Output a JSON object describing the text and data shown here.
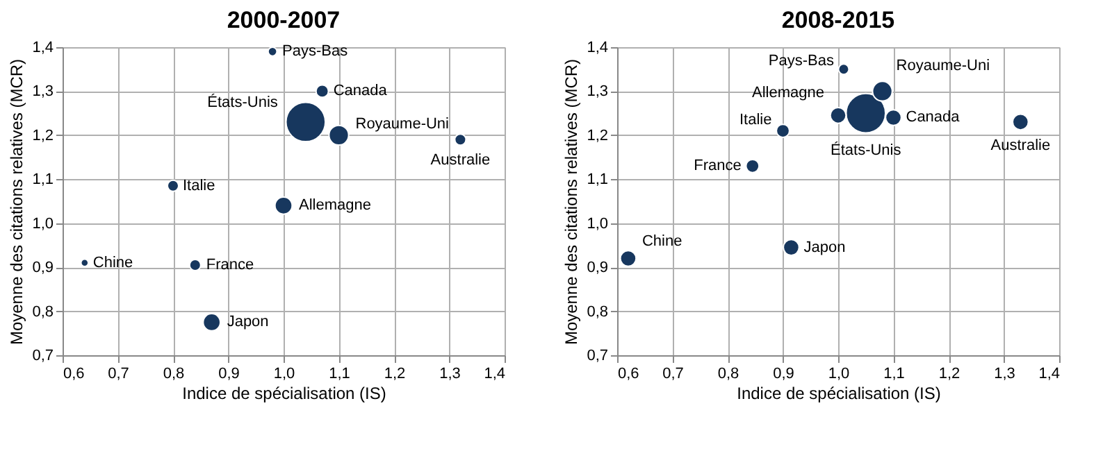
{
  "chart_data": [
    {
      "type": "bubble",
      "title": "2000-2007",
      "xlabel": "Indice de spécialisation (IS)",
      "ylabel": "Moyenne des citations relatives (MCR)",
      "grid": true,
      "xlim": [
        0.6,
        1.4
      ],
      "xticks": [
        {
          "value": 0.6,
          "label": "0,6"
        },
        {
          "value": 0.7,
          "label": "0,7"
        },
        {
          "value": 0.8,
          "label": "0,8"
        },
        {
          "value": 0.9,
          "label": "0,9"
        },
        {
          "value": 1.0,
          "label": "1,0"
        },
        {
          "value": 1.1,
          "label": "1,1"
        },
        {
          "value": 1.2,
          "label": "1,2"
        },
        {
          "value": 1.3,
          "label": "1,3"
        },
        {
          "value": 1.4,
          "label": "1,4"
        }
      ],
      "ylim": [
        0.7,
        1.4
      ],
      "yticks": [
        {
          "value": 0.7,
          "label": "0,7"
        },
        {
          "value": 0.8,
          "label": "0,8"
        },
        {
          "value": 0.9,
          "label": "0,9"
        },
        {
          "value": 1.0,
          "label": "1,0"
        },
        {
          "value": 1.1,
          "label": "1,1"
        },
        {
          "value": 1.2,
          "label": "1,2"
        },
        {
          "value": 1.3,
          "label": "1,3"
        },
        {
          "value": 1.4,
          "label": "1,4"
        }
      ],
      "series": [
        {
          "name": "Pays-Bas",
          "color": "#17375e",
          "x": [
            0.98
          ],
          "values": [
            1.39
          ],
          "sizes": [
            0.05
          ]
        },
        {
          "name": "Canada",
          "color": "#17375e",
          "x": [
            1.07
          ],
          "values": [
            1.3
          ],
          "sizes": [
            0.1
          ]
        },
        {
          "name": "États-Unis",
          "color": "#17375e",
          "x": [
            1.04
          ],
          "values": [
            1.23
          ],
          "sizes": [
            1
          ]
        },
        {
          "name": "Royaume-Uni",
          "color": "#17375e",
          "x": [
            1.1
          ],
          "values": [
            1.2
          ],
          "sizes": [
            0.25
          ]
        },
        {
          "name": "Australie",
          "color": "#17375e",
          "x": [
            1.32
          ],
          "values": [
            1.19
          ],
          "sizes": [
            0.08
          ]
        },
        {
          "name": "Italie",
          "color": "#17375e",
          "x": [
            0.8
          ],
          "values": [
            1.085
          ],
          "sizes": [
            0.08
          ]
        },
        {
          "name": "Allemagne",
          "color": "#17375e",
          "x": [
            1.0
          ],
          "values": [
            1.04
          ],
          "sizes": [
            0.19
          ]
        },
        {
          "name": "Chine",
          "color": "#17375e",
          "x": [
            0.64
          ],
          "values": [
            0.91
          ],
          "sizes": [
            0.035
          ]
        },
        {
          "name": "France",
          "color": "#17375e",
          "x": [
            0.84
          ],
          "values": [
            0.905
          ],
          "sizes": [
            0.08
          ]
        },
        {
          "name": "Japon",
          "color": "#17375e",
          "x": [
            0.87
          ],
          "values": [
            0.775
          ],
          "sizes": [
            0.19
          ]
        }
      ]
    },
    {
      "type": "bubble",
      "title": "2008-2015",
      "xlabel": "Indice de spécialisation (IS)",
      "ylabel": "Moyenne des citations relatives (MCR)",
      "grid": true,
      "xlim": [
        0.6,
        1.4
      ],
      "xticks": [
        {
          "value": 0.6,
          "label": "0,6"
        },
        {
          "value": 0.7,
          "label": "0,7"
        },
        {
          "value": 0.8,
          "label": "0,8"
        },
        {
          "value": 0.9,
          "label": "0,9"
        },
        {
          "value": 1.0,
          "label": "1,0"
        },
        {
          "value": 1.1,
          "label": "1,1"
        },
        {
          "value": 1.2,
          "label": "1,2"
        },
        {
          "value": 1.3,
          "label": "1,3"
        },
        {
          "value": 1.4,
          "label": "1,4"
        }
      ],
      "ylim": [
        0.7,
        1.4
      ],
      "yticks": [
        {
          "value": 0.7,
          "label": "0,7"
        },
        {
          "value": 0.8,
          "label": "0,8"
        },
        {
          "value": 0.9,
          "label": "0,9"
        },
        {
          "value": 1.0,
          "label": "1,0"
        },
        {
          "value": 1.1,
          "label": "1,1"
        },
        {
          "value": 1.2,
          "label": "1,2"
        },
        {
          "value": 1.3,
          "label": "1,3"
        },
        {
          "value": 1.4,
          "label": "1,4"
        }
      ],
      "series": [
        {
          "name": "Pays-Bas",
          "color": "#17375e",
          "x": [
            1.01
          ],
          "values": [
            1.35
          ],
          "sizes": [
            0.07
          ]
        },
        {
          "name": "Royaume-Uni",
          "color": "#17375e",
          "x": [
            1.08
          ],
          "values": [
            1.3
          ],
          "sizes": [
            0.25
          ]
        },
        {
          "name": "Allemagne",
          "color": "#17375e",
          "x": [
            1.0
          ],
          "values": [
            1.245
          ],
          "sizes": [
            0.16
          ]
        },
        {
          "name": "États-Unis",
          "color": "#17375e",
          "x": [
            1.05
          ],
          "values": [
            1.25
          ],
          "sizes": [
            1
          ]
        },
        {
          "name": "Canada",
          "color": "#17375e",
          "x": [
            1.1
          ],
          "values": [
            1.24
          ],
          "sizes": [
            0.16
          ]
        },
        {
          "name": "Italie",
          "color": "#17375e",
          "x": [
            0.9
          ],
          "values": [
            1.21
          ],
          "sizes": [
            0.11
          ]
        },
        {
          "name": "Australie",
          "color": "#17375e",
          "x": [
            1.33
          ],
          "values": [
            1.23
          ],
          "sizes": [
            0.16
          ]
        },
        {
          "name": "France",
          "color": "#17375e",
          "x": [
            0.845
          ],
          "values": [
            1.13
          ],
          "sizes": [
            0.11
          ]
        },
        {
          "name": "Japon",
          "color": "#17375e",
          "x": [
            0.915
          ],
          "values": [
            0.945
          ],
          "sizes": [
            0.16
          ]
        },
        {
          "name": "Chine",
          "color": "#17375e",
          "x": [
            0.62
          ],
          "values": [
            0.92
          ],
          "sizes": [
            0.16
          ]
        }
      ]
    }
  ]
}
